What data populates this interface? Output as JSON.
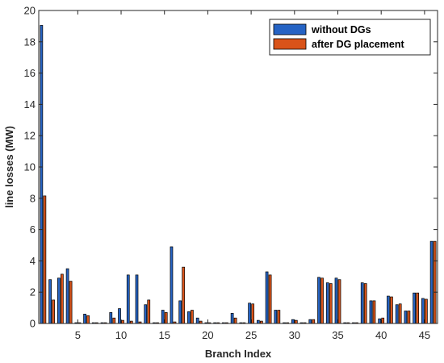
{
  "chart_data": {
    "type": "bar",
    "xlabel": "Branch Index",
    "ylabel": "line losses (MW)",
    "xlim": [
      0.5,
      46.5
    ],
    "ylim": [
      0,
      20
    ],
    "xticks": [
      5,
      10,
      15,
      20,
      25,
      30,
      35,
      40,
      45
    ],
    "yticks": [
      0,
      2,
      4,
      6,
      8,
      10,
      12,
      14,
      16,
      18,
      20
    ],
    "grid": false,
    "legend_position": "top-right",
    "categories": [
      1,
      2,
      3,
      4,
      5,
      6,
      7,
      8,
      9,
      10,
      11,
      12,
      13,
      14,
      15,
      16,
      17,
      18,
      19,
      20,
      21,
      22,
      23,
      24,
      25,
      26,
      27,
      28,
      29,
      30,
      31,
      32,
      33,
      34,
      35,
      36,
      37,
      38,
      39,
      40,
      41,
      42,
      43,
      44,
      45,
      46
    ],
    "series": [
      {
        "name": "without DGs",
        "color": "#2563c4",
        "values": [
          19.05,
          2.8,
          2.9,
          3.5,
          0.05,
          0.6,
          0.05,
          0.05,
          0.7,
          0.95,
          3.1,
          3.1,
          1.2,
          0.05,
          0.85,
          4.9,
          1.45,
          0.75,
          0.35,
          0.05,
          0.05,
          0.05,
          0.65,
          0.05,
          1.3,
          0.2,
          3.3,
          0.85,
          0.05,
          0.25,
          0.05,
          0.25,
          2.95,
          2.6,
          2.9,
          0.05,
          0.05,
          2.6,
          1.45,
          0.3,
          1.75,
          1.2,
          0.8,
          1.95,
          1.6,
          5.25
        ]
      },
      {
        "name": "after DG placement",
        "color": "#d95319",
        "values": [
          8.15,
          1.5,
          3.15,
          2.7,
          0.05,
          0.5,
          0.05,
          0.05,
          0.35,
          0.2,
          0.15,
          0.1,
          1.5,
          0.05,
          0.7,
          0.1,
          3.6,
          0.85,
          0.15,
          0.05,
          0.05,
          0.05,
          0.35,
          0.05,
          1.25,
          0.15,
          3.1,
          0.85,
          0.05,
          0.2,
          0.05,
          0.25,
          2.9,
          2.55,
          2.8,
          0.05,
          0.05,
          2.55,
          1.45,
          0.35,
          1.7,
          1.25,
          0.8,
          1.95,
          1.55,
          5.25
        ]
      }
    ]
  }
}
